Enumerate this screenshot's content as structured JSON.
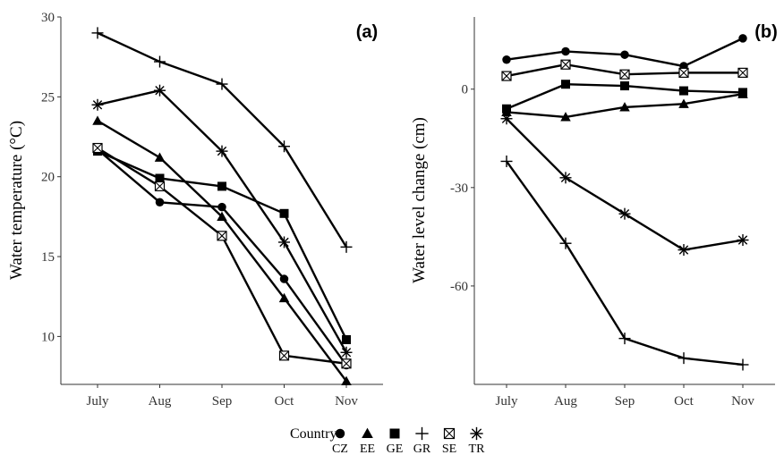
{
  "chart_data": [
    {
      "panel": "(a)",
      "type": "line",
      "title": "",
      "xlabel": "",
      "ylabel": "Water temperature (°C)",
      "categories": [
        "July",
        "Aug",
        "Sep",
        "Oct",
        "Nov"
      ],
      "ylim": [
        7,
        30
      ],
      "yticks": [
        10,
        15,
        20,
        25,
        30
      ],
      "grid": false,
      "series": [
        {
          "name": "CZ",
          "marker": "circle",
          "values": [
            21.7,
            18.4,
            18.1,
            13.6,
            8.2
          ]
        },
        {
          "name": "EE",
          "marker": "triangle",
          "values": [
            23.5,
            21.2,
            17.5,
            12.4,
            7.2
          ]
        },
        {
          "name": "GE",
          "marker": "square",
          "values": [
            21.6,
            19.9,
            19.4,
            17.7,
            9.8
          ]
        },
        {
          "name": "GR",
          "marker": "plus",
          "values": [
            29.0,
            27.2,
            25.8,
            21.9,
            15.6
          ]
        },
        {
          "name": "SE",
          "marker": "square-x",
          "values": [
            21.8,
            19.4,
            16.3,
            8.8,
            8.3
          ]
        },
        {
          "name": "TR",
          "marker": "star",
          "values": [
            24.5,
            25.4,
            21.6,
            15.9,
            9.0
          ]
        }
      ]
    },
    {
      "panel": "(b)",
      "type": "line",
      "title": "",
      "xlabel": "",
      "ylabel": "Water level change (cm)",
      "categories": [
        "July",
        "Aug",
        "Sep",
        "Oct",
        "Nov"
      ],
      "ylim": [
        -90,
        22
      ],
      "yticks": [
        -60,
        -30,
        0
      ],
      "grid": false,
      "series": [
        {
          "name": "CZ",
          "marker": "circle",
          "values": [
            9,
            11.5,
            10.5,
            7,
            15.5
          ]
        },
        {
          "name": "EE",
          "marker": "triangle",
          "values": [
            -7,
            -8.5,
            -5.5,
            -4.5,
            -1.5
          ]
        },
        {
          "name": "GE",
          "marker": "square",
          "values": [
            -6,
            1.5,
            1,
            -0.5,
            -1
          ]
        },
        {
          "name": "GR",
          "marker": "plus",
          "values": [
            -22,
            -47,
            -76,
            -82,
            -84
          ]
        },
        {
          "name": "SE",
          "marker": "square-x",
          "values": [
            4,
            7.5,
            4.5,
            5,
            5
          ]
        },
        {
          "name": "TR",
          "marker": "star",
          "values": [
            -9,
            -27,
            -38,
            -49,
            -46
          ]
        }
      ]
    }
  ],
  "legend": {
    "title": "Country",
    "placement": "bottom",
    "items": [
      {
        "label": "CZ",
        "marker": "circle"
      },
      {
        "label": "EE",
        "marker": "triangle"
      },
      {
        "label": "GE",
        "marker": "square"
      },
      {
        "label": "GR",
        "marker": "plus"
      },
      {
        "label": "SE",
        "marker": "square-x"
      },
      {
        "label": "TR",
        "marker": "star"
      }
    ]
  },
  "colors": {
    "line": "#000000",
    "axis": "#333333",
    "background": "#ffffff"
  }
}
